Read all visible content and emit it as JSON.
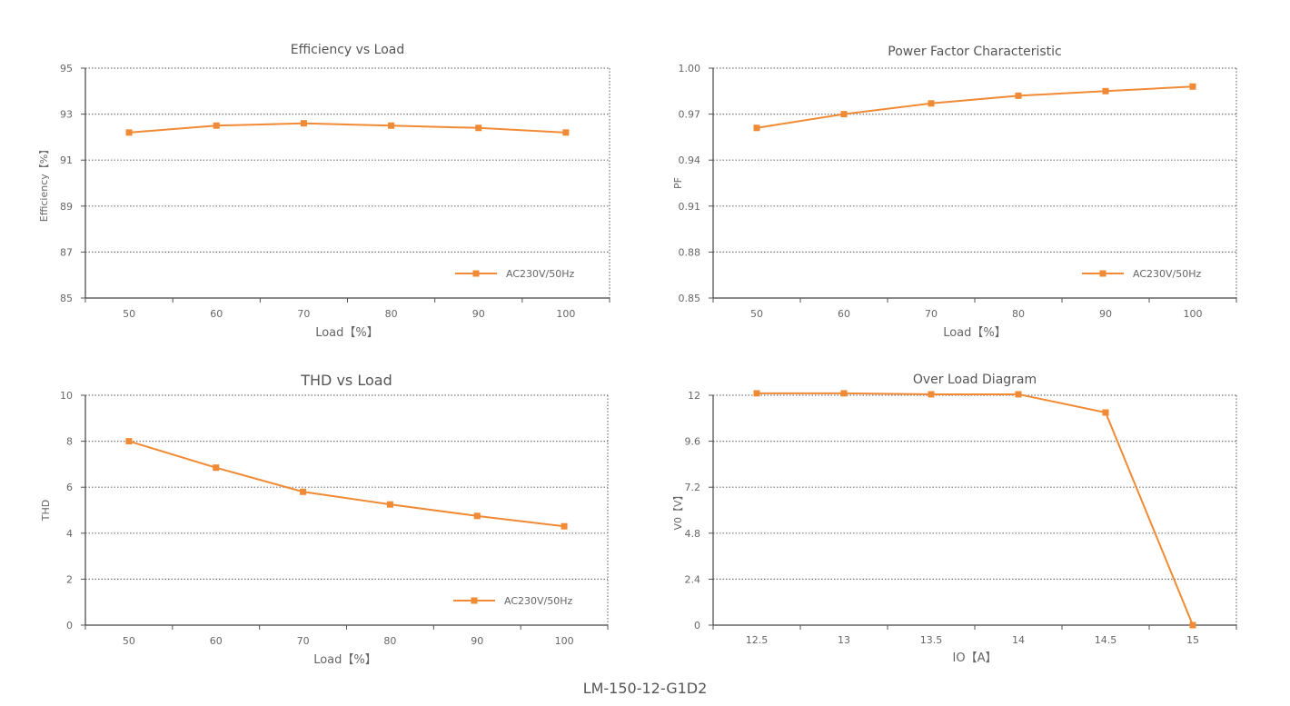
{
  "footer": {
    "model": "LM-150-12-G1D2"
  },
  "chart_data": [
    {
      "type": "line",
      "title": "Efficiency vs Load",
      "xlabel": "Load【%】",
      "ylabel": "Efficiency【%】",
      "categories": [
        "50",
        "60",
        "70",
        "80",
        "90",
        "100"
      ],
      "yticks": [
        "85",
        "87",
        "89",
        "91",
        "93",
        "95"
      ],
      "ylim": [
        85,
        95
      ],
      "grid": true,
      "legend_position": "bottom-right",
      "series": [
        {
          "name": "AC230V/50Hz",
          "values": [
            92.2,
            92.5,
            92.6,
            92.5,
            92.4,
            92.2
          ],
          "color": "#f08a34"
        }
      ]
    },
    {
      "type": "line",
      "title": "Power Factor Characteristic",
      "xlabel": "Load【%】",
      "ylabel": "PF",
      "categories": [
        "50",
        "60",
        "70",
        "80",
        "90",
        "100"
      ],
      "yticks": [
        "0.85",
        "0.88",
        "0.91",
        "0.94",
        "0.97",
        "1.00"
      ],
      "ylim": [
        0.85,
        1.0
      ],
      "grid": true,
      "legend_position": "bottom-right",
      "series": [
        {
          "name": "AC230V/50Hz",
          "values": [
            0.961,
            0.97,
            0.977,
            0.982,
            0.985,
            0.988
          ],
          "color": "#f08a34"
        }
      ]
    },
    {
      "type": "line",
      "title": "THD vs Load",
      "xlabel": "Load【%】",
      "ylabel": "THD",
      "categories": [
        "50",
        "60",
        "70",
        "80",
        "90",
        "100"
      ],
      "yticks": [
        "0",
        "2",
        "4",
        "6",
        "8",
        "10"
      ],
      "ylim": [
        0,
        10
      ],
      "grid": true,
      "legend_position": "bottom-right",
      "series": [
        {
          "name": "AC230V/50Hz",
          "values": [
            8.0,
            6.85,
            5.8,
            5.25,
            4.75,
            4.3
          ],
          "color": "#f08a34"
        }
      ]
    },
    {
      "type": "line",
      "title": "Over Load Diagram",
      "xlabel": "IO【A】",
      "ylabel": "V0【V】",
      "categories": [
        "12.5",
        "13",
        "13.5",
        "14",
        "14.5",
        "15"
      ],
      "yticks": [
        "0",
        "2.4",
        "4.8",
        "7.2",
        "9.6",
        "12"
      ],
      "ylim": [
        0,
        12
      ],
      "grid": true,
      "series": [
        {
          "values": [
            12.1,
            12.1,
            12.05,
            12.05,
            11.1,
            0
          ],
          "color": "#f08a34"
        }
      ]
    }
  ]
}
